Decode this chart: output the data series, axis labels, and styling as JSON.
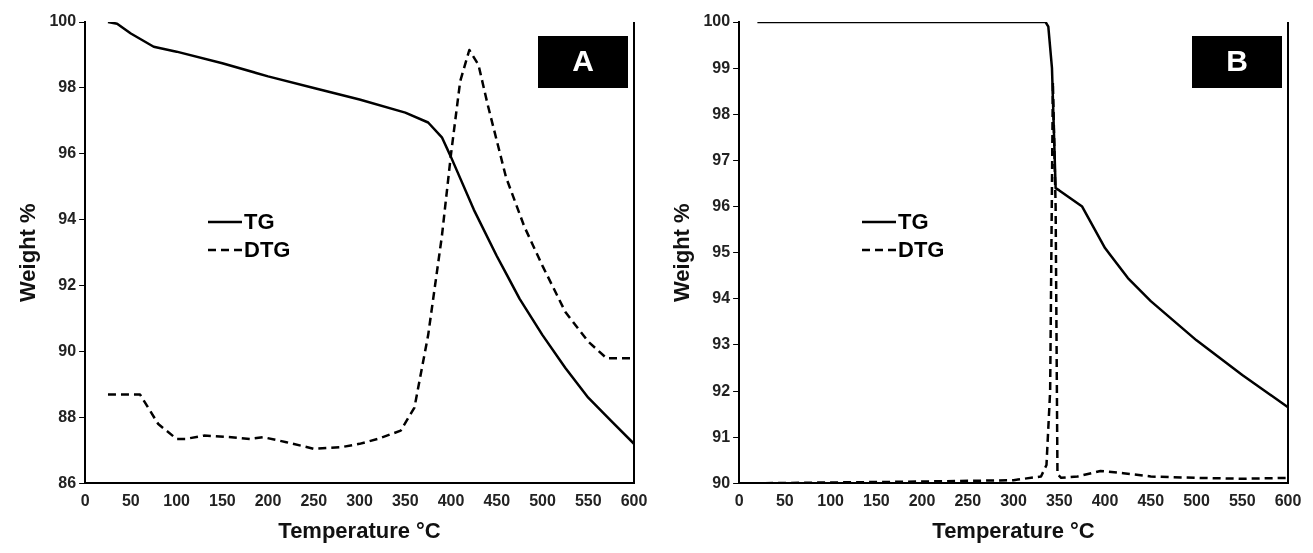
{
  "chart_data": [
    {
      "type": "line",
      "xlabel": "Temperature °C",
      "ylabel": "Weight %",
      "annotations": [
        "A"
      ],
      "xlim": [
        0,
        600
      ],
      "xticks": [
        0,
        50,
        100,
        150,
        200,
        250,
        300,
        350,
        400,
        450,
        500,
        550,
        600
      ],
      "ylim": [
        86,
        100
      ],
      "yticks": [
        86,
        88,
        90,
        92,
        94,
        96,
        98,
        100
      ],
      "grid": false,
      "legend": "left",
      "marker": "none",
      "series": [
        {
          "name": "TG",
          "color": "#000000",
          "line_style": "solid",
          "x": [
            25,
            35,
            50,
            75,
            100,
            150,
            200,
            250,
            300,
            350,
            375,
            390,
            400,
            425,
            450,
            475,
            500,
            525,
            550,
            575,
            600
          ],
          "values": [
            100,
            99.95,
            99.65,
            99.25,
            99.1,
            98.75,
            98.35,
            98.0,
            97.65,
            97.25,
            96.95,
            96.5,
            95.9,
            94.3,
            92.9,
            91.6,
            90.5,
            89.5,
            88.6,
            87.9,
            87.2
          ]
        },
        {
          "name": "DTG",
          "color": "#000000",
          "line_style": "dashed",
          "x": [
            25,
            60,
            80,
            100,
            110,
            130,
            160,
            180,
            195,
            220,
            250,
            280,
            300,
            320,
            345,
            360,
            375,
            390,
            400,
            410,
            420,
            430,
            440,
            460,
            480,
            500,
            525,
            550,
            570,
            600
          ],
          "values": [
            88.7,
            88.7,
            87.8,
            87.35,
            87.35,
            87.45,
            87.4,
            87.35,
            87.4,
            87.25,
            87.05,
            87.1,
            87.2,
            87.35,
            87.6,
            88.3,
            90.5,
            93.5,
            96,
            98.2,
            99.15,
            98.7,
            97.5,
            95.3,
            93.8,
            92.6,
            91.2,
            90.3,
            89.8,
            89.8
          ]
        }
      ]
    },
    {
      "type": "line",
      "xlabel": "Temperature °C",
      "ylabel": "Weight %",
      "annotations": [
        "B"
      ],
      "xlim": [
        0,
        600
      ],
      "xticks": [
        0,
        50,
        100,
        150,
        200,
        250,
        300,
        350,
        400,
        450,
        500,
        550,
        600
      ],
      "ylim": [
        90,
        100
      ],
      "yticks": [
        90,
        91,
        92,
        93,
        94,
        95,
        96,
        97,
        98,
        99,
        100
      ],
      "grid": false,
      "legend": "left",
      "marker": "none",
      "series": [
        {
          "name": "TG",
          "color": "#000000",
          "line_style": "solid",
          "x": [
            20,
            335,
            338,
            342,
            346,
            350,
            375,
            400,
            425,
            450,
            500,
            550,
            600
          ],
          "values": [
            100,
            100,
            99.9,
            99.0,
            96.4,
            96.35,
            96.0,
            95.1,
            94.45,
            93.95,
            93.1,
            92.35,
            91.65
          ]
        },
        {
          "name": "DTG",
          "color": "#000000",
          "line_style": "dashed",
          "x": [
            0,
            100,
            200,
            300,
            330,
            336,
            340,
            343,
            346,
            348,
            352,
            370,
            395,
            420,
            450,
            500,
            550,
            600
          ],
          "values": [
            90,
            90.02,
            90.04,
            90.07,
            90.15,
            90.4,
            92,
            98.7,
            96,
            90.2,
            90.12,
            90.15,
            90.27,
            90.22,
            90.15,
            90.12,
            90.1,
            90.12
          ]
        }
      ]
    }
  ]
}
